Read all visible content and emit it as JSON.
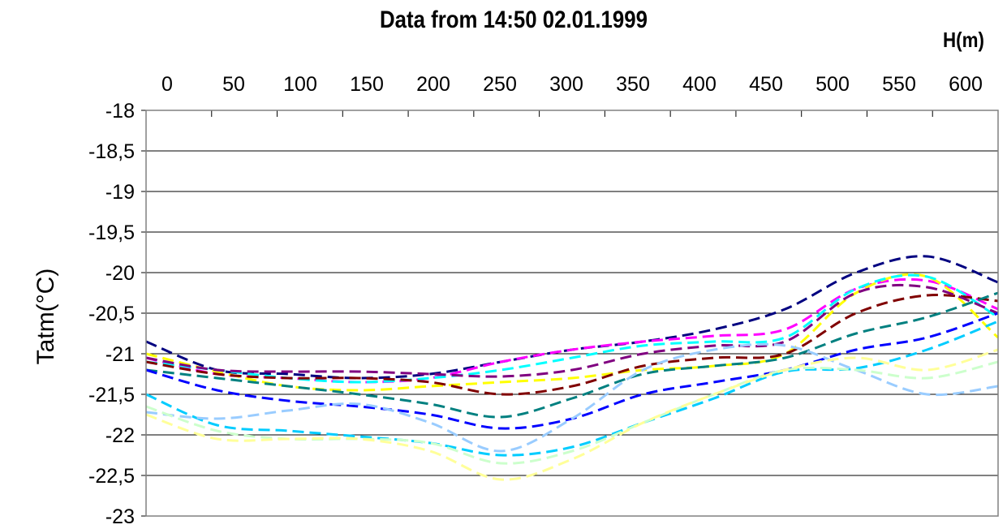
{
  "chart_data": {
    "type": "line",
    "title": "Data from 14:50 02.01.1999",
    "xlabel": "H(m)",
    "ylabel": "Tatm(°C)",
    "x_ticks": [
      "0",
      "50",
      "100",
      "150",
      "200",
      "250",
      "300",
      "350",
      "400",
      "450",
      "500",
      "550",
      "600"
    ],
    "y_ticks": [
      "-18",
      "-18,5",
      "-19",
      "-19,5",
      "-20",
      "-20,5",
      "-21",
      "-21,5",
      "-22",
      "-22,5",
      "-23"
    ],
    "xlim": [
      0,
      600
    ],
    "ylim": [
      -23,
      -18
    ],
    "x_axis_position": "top",
    "grid": true,
    "line_style": "dashed",
    "x": [
      0,
      50,
      100,
      150,
      200,
      250,
      300,
      350,
      400,
      450,
      500,
      550,
      600
    ],
    "series": [
      {
        "color": "#000080",
        "values": [
          -20.85,
          -21.2,
          -21.25,
          -21.3,
          -21.25,
          -21.1,
          -20.95,
          -20.85,
          -20.7,
          -20.45,
          -20.0,
          -19.8,
          -20.12
        ]
      },
      {
        "color": "#ff00ff",
        "values": [
          -21.05,
          -21.25,
          -21.3,
          -21.35,
          -21.3,
          -21.1,
          -20.95,
          -20.85,
          -20.78,
          -20.7,
          -20.2,
          -20.1,
          -20.45
        ]
      },
      {
        "color": "#ffff00",
        "values": [
          -21.0,
          -21.22,
          -21.4,
          -21.45,
          -21.4,
          -21.35,
          -21.3,
          -21.2,
          -21.15,
          -21.0,
          -20.25,
          -20.05,
          -20.8
        ]
      },
      {
        "color": "#00ffff",
        "values": [
          -21.1,
          -21.2,
          -21.3,
          -21.35,
          -21.3,
          -21.2,
          -21.05,
          -20.9,
          -20.85,
          -20.8,
          -20.2,
          -20.05,
          -20.55
        ]
      },
      {
        "color": "#800000",
        "values": [
          -21.1,
          -21.25,
          -21.3,
          -21.3,
          -21.35,
          -21.5,
          -21.4,
          -21.15,
          -21.05,
          -21.0,
          -20.5,
          -20.28,
          -20.35
        ]
      },
      {
        "color": "#800080",
        "values": [
          -21.05,
          -21.2,
          -21.22,
          -21.22,
          -21.25,
          -21.28,
          -21.2,
          -21.0,
          -20.9,
          -20.85,
          -20.25,
          -20.18,
          -20.5
        ]
      },
      {
        "color": "#008080",
        "values": [
          -21.2,
          -21.3,
          -21.4,
          -21.5,
          -21.62,
          -21.78,
          -21.55,
          -21.25,
          -21.15,
          -21.05,
          -20.75,
          -20.55,
          -20.25
        ]
      },
      {
        "color": "#0000ff",
        "values": [
          -21.2,
          -21.45,
          -21.58,
          -21.65,
          -21.75,
          -21.92,
          -21.8,
          -21.5,
          -21.35,
          -21.2,
          -20.95,
          -20.8,
          -20.5
        ]
      },
      {
        "color": "#00ccff",
        "values": [
          -21.5,
          -21.88,
          -21.95,
          -22.02,
          -22.1,
          -22.25,
          -22.15,
          -21.85,
          -21.55,
          -21.22,
          -21.18,
          -20.95,
          -20.6
        ]
      },
      {
        "color": "#99ccff",
        "values": [
          -21.72,
          -21.8,
          -21.7,
          -21.62,
          -21.85,
          -22.2,
          -21.8,
          -21.2,
          -20.95,
          -20.9,
          -21.2,
          -21.5,
          -21.4
        ]
      },
      {
        "color": "#ccffcc",
        "values": [
          -21.65,
          -21.95,
          -22.05,
          -22.05,
          -22.1,
          -22.35,
          -22.2,
          -21.85,
          -21.5,
          -21.2,
          -21.2,
          -21.3,
          -21.1
        ]
      },
      {
        "color": "#ffff99",
        "values": [
          -21.75,
          -22.05,
          -22.05,
          -22.05,
          -22.2,
          -22.55,
          -22.3,
          -21.85,
          -21.5,
          -21.2,
          -21.05,
          -21.2,
          -20.95
        ]
      }
    ]
  }
}
